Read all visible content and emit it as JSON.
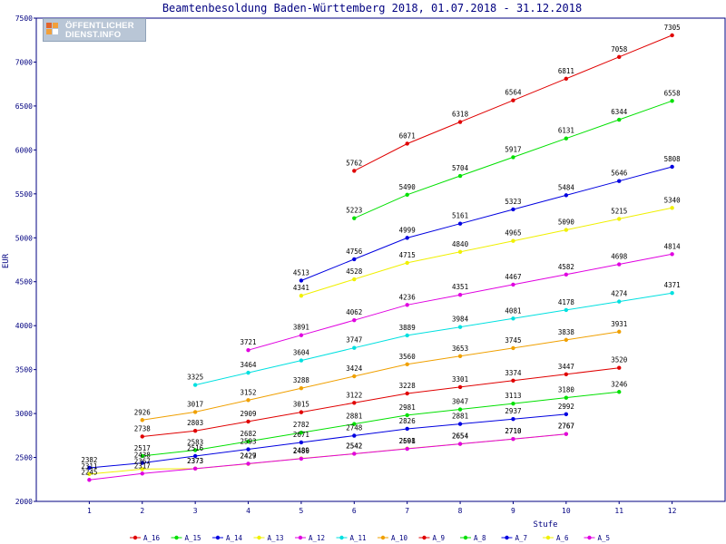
{
  "logo": {
    "line1": "ÖFFENTLICHER",
    "line2": "DIENST.INFO"
  },
  "chart_data": {
    "type": "line",
    "title": "Beamtenbesoldung Baden-Württemberg 2018, 01.07.2018 - 31.12.2018",
    "xlabel": "Stufe",
    "ylabel": "EUR",
    "xlim": [
      0,
      13
    ],
    "ylim": [
      2000,
      7500
    ],
    "x_ticks": [
      1,
      2,
      3,
      4,
      5,
      6,
      7,
      8,
      9,
      10,
      11,
      12
    ],
    "y_ticks": [
      2000,
      2500,
      3000,
      3500,
      4000,
      4500,
      5000,
      5500,
      6000,
      6500,
      7000,
      7500
    ],
    "grid": false,
    "legend_position": "bottom",
    "series": [
      {
        "name": "A_16",
        "color": "#e00000",
        "x": [
          6,
          7,
          8,
          9,
          10,
          11,
          12
        ],
        "values": [
          5762,
          6071,
          6318,
          6564,
          6811,
          7058,
          7305
        ]
      },
      {
        "name": "A_15",
        "color": "#00e000",
        "x": [
          6,
          7,
          8,
          9,
          10,
          11,
          12
        ],
        "values": [
          5223,
          5490,
          5704,
          5917,
          6131,
          6344,
          6558
        ]
      },
      {
        "name": "A_14",
        "color": "#0000e0",
        "x": [
          5,
          6,
          7,
          8,
          9,
          10,
          11,
          12
        ],
        "values": [
          4513,
          4756,
          4999,
          5161,
          5323,
          5484,
          5646,
          5808
        ]
      },
      {
        "name": "A_13",
        "color": "#f0f000",
        "x": [
          5,
          6,
          7,
          8,
          9,
          10,
          11,
          12
        ],
        "values": [
          4341,
          4528,
          4715,
          4840,
          4965,
          5090,
          5215,
          5340
        ]
      },
      {
        "name": "A_12",
        "color": "#e000e0",
        "x": [
          4,
          5,
          6,
          7,
          8,
          9,
          10,
          11,
          12
        ],
        "values": [
          3721,
          3891,
          4062,
          4236,
          4351,
          4467,
          4582,
          4698,
          4814
        ]
      },
      {
        "name": "A_11",
        "color": "#00e0e0",
        "x": [
          3,
          4,
          5,
          6,
          7,
          8,
          9,
          10,
          11,
          12
        ],
        "values": [
          3325,
          3464,
          3604,
          3747,
          3889,
          3984,
          4081,
          4178,
          4274,
          4371
        ]
      },
      {
        "name": "A_10",
        "color": "#f0a000",
        "x": [
          2,
          3,
          4,
          5,
          6,
          7,
          8,
          9,
          10,
          11
        ],
        "values": [
          2926,
          3017,
          3152,
          3288,
          3424,
          3560,
          3653,
          3745,
          3838,
          3931
        ]
      },
      {
        "name": "A_9",
        "color": "#e00000",
        "x": [
          2,
          3,
          4,
          5,
          6,
          7,
          8,
          9,
          10,
          11
        ],
        "values": [
          2738,
          2803,
          2909,
          3015,
          3122,
          3228,
          3301,
          3374,
          3447,
          3520
        ]
      },
      {
        "name": "A_8",
        "color": "#00e000",
        "x": [
          2,
          3,
          4,
          5,
          6,
          7,
          8,
          9,
          10,
          11
        ],
        "values": [
          2517,
          2583,
          2682,
          2782,
          2881,
          2981,
          3047,
          3113,
          3180,
          3246
        ]
      },
      {
        "name": "A_7",
        "color": "#0000e0",
        "x": [
          1,
          2,
          3,
          4,
          5,
          6,
          7,
          8,
          9,
          10
        ],
        "values": [
          2382,
          2438,
          2516,
          2593,
          2671,
          2748,
          2826,
          2881,
          2937,
          2992
        ]
      },
      {
        "name": "A_6",
        "color": "#f0f000",
        "x": [
          1,
          2,
          3,
          4,
          5,
          6,
          7,
          8,
          9,
          10
        ],
        "values": [
          2311,
          2367,
          2373,
          2427,
          2489,
          2542,
          2601,
          2654,
          2710,
          2767
        ]
      },
      {
        "name": "A_5",
        "color": "#e000e0",
        "x": [
          1,
          2,
          3,
          4,
          5,
          6,
          7,
          8,
          9,
          10
        ],
        "values": [
          2245,
          2317,
          2373,
          2429,
          2486,
          2542,
          2598,
          2654,
          2710,
          2767
        ]
      }
    ]
  }
}
